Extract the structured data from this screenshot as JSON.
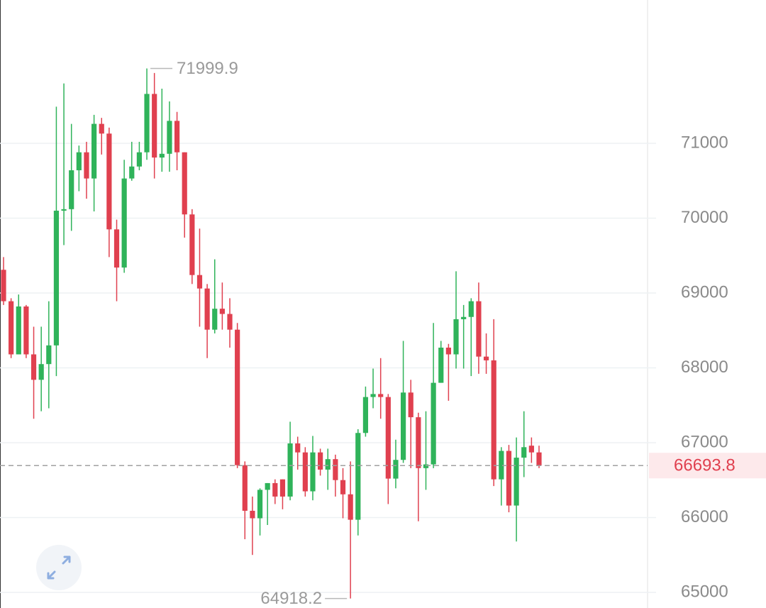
{
  "chart_data": {
    "type": "candlestick",
    "open": [
      69310,
      68890,
      68180,
      68820,
      68180,
      67840,
      68050,
      68300,
      70100,
      70120,
      70640,
      70880,
      70530,
      71260,
      71130,
      69850,
      69340,
      70530,
      70690,
      70880,
      71660,
      70810,
      70860,
      71300,
      70880,
      70050,
      69240,
      69060,
      68510,
      68790,
      68720,
      68510,
      66700,
      66090,
      65990,
      66370,
      66460,
      66510,
      66280,
      66990,
      66870,
      66350,
      66870,
      66640,
      66780,
      66500,
      66310,
      65970,
      67130,
      67610,
      67650,
      67610,
      66520,
      66770,
      67670,
      67340,
      66660,
      66710,
      67800,
      68270,
      68180,
      68650,
      68680,
      68890,
      68150,
      68100,
      66510,
      66890,
      66160,
      66800,
      66960,
      66870
    ],
    "high": [
      69480,
      68930,
      68980,
      68840,
      68550,
      68550,
      68890,
      71490,
      71800,
      71260,
      70970,
      71020,
      71380,
      71340,
      71210,
      69980,
      70780,
      71020,
      71020,
      71999.9,
      71940,
      71730,
      71560,
      71420,
      70880,
      70120,
      69860,
      69120,
      69450,
      69140,
      68930,
      68600,
      66750,
      66280,
      66390,
      66460,
      66510,
      66510,
      67280,
      67080,
      66940,
      67090,
      66920,
      66920,
      66840,
      66660,
      66750,
      67180,
      67750,
      67990,
      68130,
      67650,
      67040,
      68360,
      67840,
      67400,
      67420,
      68600,
      68360,
      68320,
      69290,
      68840,
      68930,
      69140,
      68460,
      68650,
      66940,
      66970,
      67070,
      67420,
      67070,
      66960
    ],
    "low": [
      68840,
      68130,
      68180,
      68130,
      67320,
      67420,
      67460,
      67890,
      69640,
      69830,
      70360,
      70260,
      70090,
      70850,
      69480,
      68890,
      69270,
      70500,
      70640,
      70780,
      70530,
      70620,
      70620,
      70640,
      69740,
      69120,
      68550,
      68130,
      68460,
      68510,
      68270,
      66660,
      65710,
      65500,
      65760,
      65900,
      66180,
      66110,
      66230,
      66640,
      66280,
      66230,
      66560,
      66370,
      66280,
      65990,
      64918.2,
      65760,
      67080,
      67460,
      67320,
      66180,
      66390,
      66730,
      66660,
      65950,
      66370,
      66660,
      67800,
      67560,
      67990,
      67990,
      67890,
      67920,
      67920,
      66420,
      66160,
      66070,
      65680,
      66540,
      66730,
      66660
    ],
    "close": [
      68890,
      68180,
      68820,
      68180,
      67840,
      68050,
      68300,
      70100,
      70120,
      70640,
      70880,
      70530,
      71260,
      71130,
      69850,
      69340,
      70530,
      70690,
      70880,
      71660,
      70810,
      70860,
      71300,
      70880,
      70050,
      69240,
      69060,
      68510,
      68790,
      68720,
      68510,
      66700,
      66090,
      65990,
      66370,
      66460,
      66280,
      66280,
      66990,
      66870,
      66350,
      66870,
      66640,
      66780,
      66500,
      66310,
      65970,
      67130,
      67610,
      67650,
      67610,
      66520,
      66770,
      67670,
      67340,
      66660,
      66710,
      67800,
      68270,
      68180,
      68650,
      68680,
      68890,
      68150,
      68100,
      66510,
      66890,
      66160,
      66800,
      66940,
      66870,
      66693.8
    ],
    "up_color": "#2fb35a",
    "down_color": "#e0404f",
    "ylim": [
      64791,
      72915
    ],
    "yticks": [
      65000,
      66000,
      67000,
      68000,
      69000,
      70000,
      71000
    ],
    "grid": true
  }
}
